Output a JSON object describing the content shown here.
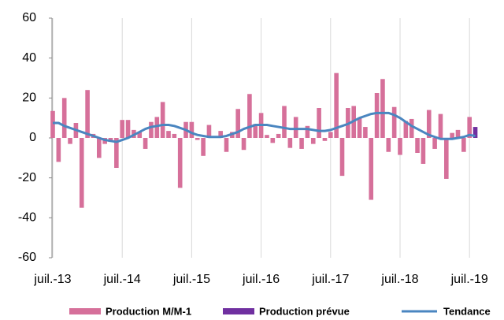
{
  "chart_data": {
    "type": "bar",
    "categories": [
      "juil.-13",
      null,
      null,
      null,
      null,
      null,
      null,
      null,
      null,
      null,
      null,
      null,
      "juil.-14",
      null,
      null,
      null,
      null,
      null,
      null,
      null,
      null,
      null,
      null,
      null,
      "juil.-15",
      null,
      null,
      null,
      null,
      null,
      null,
      null,
      null,
      null,
      null,
      null,
      "juil.-16",
      null,
      null,
      null,
      null,
      null,
      null,
      null,
      null,
      null,
      null,
      null,
      "juil.-17",
      null,
      null,
      null,
      null,
      null,
      null,
      null,
      null,
      null,
      null,
      null,
      "juil.-18",
      null,
      null,
      null,
      null,
      null,
      null,
      null,
      null,
      null,
      null,
      null,
      "juil.-19",
      null
    ],
    "series": [
      {
        "name": "Production M/M-1",
        "type": "bar",
        "color": "#d6709a",
        "values": [
          13.5,
          -12,
          20,
          -3,
          7.5,
          -35,
          24,
          2,
          -10,
          -3,
          -2,
          -15,
          9,
          9,
          4,
          3,
          -5.5,
          8,
          10.5,
          18,
          3.5,
          2,
          -25,
          8,
          8,
          -1,
          -9,
          6.5,
          1,
          3.5,
          -7,
          3,
          14.5,
          -6,
          22,
          7,
          12.5,
          1.5,
          -2.5,
          2,
          16,
          -5,
          10.5,
          -5.5,
          6,
          -3,
          15,
          -1.5,
          3,
          32.5,
          -19,
          15,
          16,
          10,
          5.5,
          -31,
          22.5,
          29.5,
          -7,
          15.5,
          -8.5,
          8.5,
          9.5,
          -7.5,
          -13,
          14,
          -5.5,
          12,
          -20.5,
          2.5,
          4,
          -7,
          10.5,
          null
        ]
      },
      {
        "name": "Production prévue",
        "type": "bar",
        "color": "#7030a0",
        "values": [
          null,
          null,
          null,
          null,
          null,
          null,
          null,
          null,
          null,
          null,
          null,
          null,
          null,
          null,
          null,
          null,
          null,
          null,
          null,
          null,
          null,
          null,
          null,
          null,
          null,
          null,
          null,
          null,
          null,
          null,
          null,
          null,
          null,
          null,
          null,
          null,
          null,
          null,
          null,
          null,
          null,
          null,
          null,
          null,
          null,
          null,
          null,
          null,
          null,
          null,
          null,
          null,
          null,
          null,
          null,
          null,
          null,
          null,
          null,
          null,
          null,
          null,
          null,
          null,
          null,
          null,
          null,
          null,
          null,
          null,
          null,
          null,
          null,
          5.5
        ]
      },
      {
        "name": "Tendance",
        "type": "line",
        "color": "#4a86c0",
        "values": [
          7.5,
          7.5,
          6,
          5,
          4,
          3,
          2,
          1,
          0,
          -1,
          -1.5,
          -2,
          -1,
          0,
          1.5,
          3,
          4.5,
          5.5,
          6,
          6.5,
          6.5,
          6,
          5,
          4,
          2.5,
          1.5,
          1,
          0.5,
          0.5,
          0.5,
          1,
          2,
          3,
          4.5,
          5.5,
          6.5,
          6.5,
          6.5,
          6,
          5.5,
          5,
          4.5,
          4.5,
          4.5,
          4.5,
          4,
          3.5,
          3.5,
          4,
          5,
          6,
          7,
          8.5,
          10,
          11,
          12,
          12.5,
          12.5,
          12.5,
          11.5,
          10,
          8,
          6,
          4.5,
          3,
          1.5,
          0.5,
          -0.5,
          -0.5,
          -0.5,
          0,
          0.5,
          1.5,
          1
        ]
      }
    ],
    "ylim": [
      -60,
      60
    ],
    "yticks": [
      -60,
      -40,
      -20,
      0,
      20,
      40,
      60
    ],
    "legend": "bottom"
  }
}
